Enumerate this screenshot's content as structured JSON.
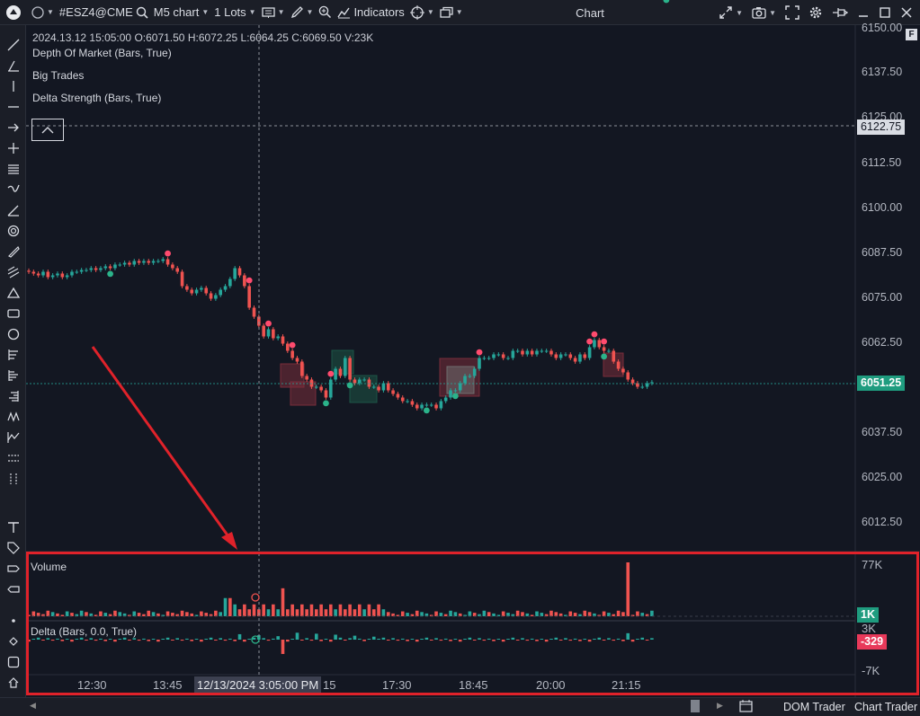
{
  "toolbar": {
    "symbol": "#ESZ4@CME",
    "timeframe": "M5 chart",
    "lots": "1 Lots",
    "indicators": "Indicators",
    "window_title": "Chart"
  },
  "chart": {
    "ohlc_readout": "2024.13.12 15:05:00 O:6071.50 H:6072.25 L:6064.25 C:6069.50 V:23K",
    "indicator_legends": [
      "Depth Of Market (Bars, True)",
      "Big Trades",
      "Delta Strength (Bars, True)"
    ],
    "price_ticks": [
      "6150.00",
      "6137.50",
      "6125.00",
      "6112.50",
      "6100.00",
      "6087.50",
      "6075.00",
      "6062.50",
      "6037.50",
      "6025.00",
      "6012.50"
    ],
    "crosshair_price": "6122.75",
    "last_price": "6051.25",
    "time_ticks": [
      "12:30",
      "13:45",
      "15",
      "17:30",
      "18:45",
      "20:00",
      "21:15"
    ],
    "crosshair_time": "12/13/2024 3:05:00 PM",
    "f_button": "F"
  },
  "volume_panel": {
    "title": "Volume",
    "max_label": "77K",
    "last_value": "1K"
  },
  "delta_panel": {
    "title": "Delta (Bars, 0.0, True)",
    "top_label": "3K",
    "bottom_label": "-7K",
    "last_value": "-329"
  },
  "bottom_bar": {
    "dom_trader": "DOM Trader",
    "chart_trader": "Chart Trader"
  },
  "colors": {
    "background": "#131722",
    "bull": "#26a69a",
    "bear": "#ef5350",
    "annotation": "#e0222a",
    "last_price_badge": "#1f9c7f",
    "delta_badge": "#e8395a"
  },
  "chart_data": {
    "type": "candlestick",
    "y_unit": "price",
    "ylim": [
      6006,
      6152
    ],
    "last": 6051.25,
    "closes": [
      6082,
      6081.5,
      6081,
      6082,
      6080.5,
      6081,
      6081.5,
      6080.5,
      6081,
      6082,
      6082,
      6082.5,
      6082.5,
      6083,
      6082.5,
      6083,
      6083.5,
      6083,
      6084,
      6084,
      6084.5,
      6084,
      6085,
      6084.5,
      6085,
      6084.5,
      6085,
      6085,
      6085.5,
      6084,
      6083,
      6082,
      6078,
      6077,
      6076,
      6077,
      6077.5,
      6076,
      6074.5,
      6075.5,
      6077,
      6078,
      6080,
      6083,
      6081,
      6078,
      6072,
      6069.5,
      6067,
      6064,
      6066,
      6063.5,
      6064,
      6062,
      6060,
      6058,
      6057,
      6053,
      6052,
      6050,
      6050,
      6049,
      6047,
      6052,
      6055,
      6053,
      6058,
      6052,
      6051,
      6052,
      6052,
      6050,
      6050,
      6049,
      6051,
      6049,
      6048,
      6047,
      6046,
      6046,
      6045,
      6044,
      6045,
      6045,
      6045,
      6044,
      6046,
      6047,
      6049,
      6049,
      6051,
      6053,
      6053,
      6055,
      6058,
      6058,
      6058,
      6059,
      6059,
      6058,
      6058,
      6060,
      6060,
      6059,
      6060,
      6059,
      6060,
      6060,
      6060,
      6059,
      6058,
      6059,
      6059,
      6058,
      6057,
      6059,
      6058,
      6061,
      6063,
      6061,
      6060,
      6060,
      6057,
      6055,
      6054,
      6052,
      6051,
      6050,
      6050,
      6051,
      6051.25
    ],
    "volume_max": 77
  }
}
